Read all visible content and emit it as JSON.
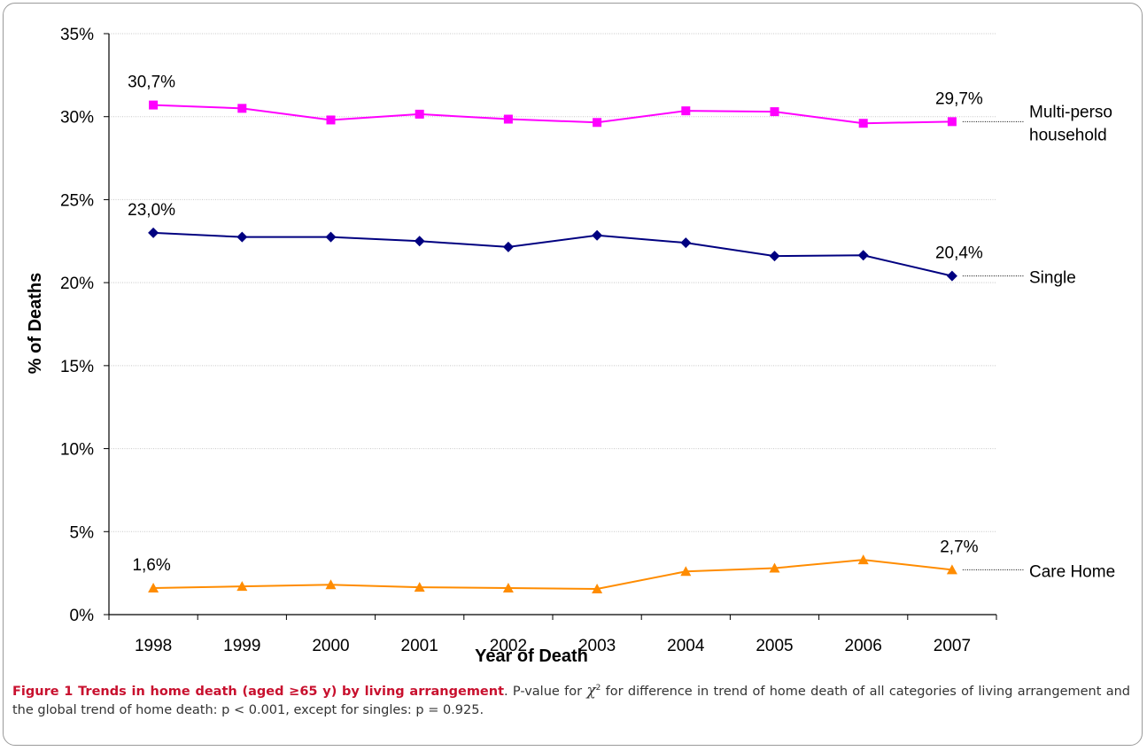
{
  "chart_data": {
    "type": "line",
    "categories": [
      "1998",
      "1999",
      "2000",
      "2001",
      "2002",
      "2003",
      "2004",
      "2005",
      "2006",
      "2007"
    ],
    "series": [
      {
        "name": "Multi-perso household",
        "label_lines": [
          "Multi-perso",
          "household"
        ],
        "color": "#ff00ff",
        "marker": "square",
        "values": [
          30.7,
          30.5,
          29.8,
          30.15,
          29.85,
          29.65,
          30.35,
          30.3,
          29.6,
          29.7
        ],
        "start_label": "30,7%",
        "end_label": "29,7%"
      },
      {
        "name": "Single",
        "label_lines": [
          "Single"
        ],
        "color": "#000080",
        "marker": "diamond",
        "values": [
          23.0,
          22.75,
          22.75,
          22.5,
          22.15,
          22.85,
          22.4,
          21.6,
          21.65,
          20.4
        ],
        "start_label": "23,0%",
        "end_label": "20,4%"
      },
      {
        "name": "Care Home",
        "label_lines": [
          "Care Home"
        ],
        "color": "#ff8c00",
        "marker": "triangle",
        "values": [
          1.6,
          1.7,
          1.8,
          1.65,
          1.6,
          1.55,
          2.6,
          2.8,
          3.3,
          2.7
        ],
        "start_label": "1,6%",
        "end_label": "2,7%"
      }
    ],
    "xlabel": "Year of Death",
    "ylabel": "% of Deaths",
    "ylim": [
      0,
      35
    ],
    "yticks": [
      0,
      5,
      10,
      15,
      20,
      25,
      30,
      35
    ],
    "ytick_labels": [
      "0%",
      "5%",
      "10%",
      "15%",
      "20%",
      "25%",
      "30%",
      "35%"
    ],
    "grid": true
  },
  "caption": {
    "title": "Figure 1 Trends in home death (aged ≥65 y) by living arrangement",
    "text_before_symbol": ". P-value for ",
    "symbol": "χ",
    "superscript": "2",
    "text_after_symbol": " for difference in trend of home death of all categories of living arrangement and the global trend of home death: p < 0.001, except for singles: p = 0.925."
  }
}
